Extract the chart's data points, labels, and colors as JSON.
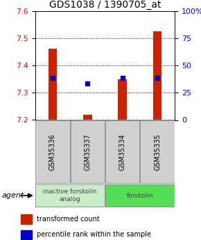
{
  "title": "GDS1038 / 1390705_at",
  "samples": [
    "GSM35336",
    "GSM35337",
    "GSM35334",
    "GSM35335"
  ],
  "red_values": [
    7.46,
    7.22,
    7.35,
    7.525
  ],
  "blue_values": [
    7.355,
    7.335,
    7.355,
    7.355
  ],
  "ylim": [
    7.2,
    7.6
  ],
  "yticks_left": [
    7.2,
    7.3,
    7.4,
    7.5,
    7.6
  ],
  "yticks_right": [
    0,
    25,
    50,
    75,
    100
  ],
  "ytick_labels_right": [
    "0",
    "25",
    "50",
    "75",
    "100%"
  ],
  "groups": [
    {
      "label": "inactive forskolin\nanalog",
      "span": [
        0,
        2
      ],
      "color": "#c8edc8"
    },
    {
      "label": "forskolin",
      "span": [
        2,
        4
      ],
      "color": "#55dd55"
    }
  ],
  "agent_label": "agent",
  "legend_red": "transformed count",
  "legend_blue": "percentile rank within the sample",
  "bar_color_red": "#cc2200",
  "bar_color_blue": "#0000cc",
  "title_fontsize": 10,
  "tick_fontsize": 8,
  "sample_label_fontsize": 7,
  "bar_width": 0.25
}
